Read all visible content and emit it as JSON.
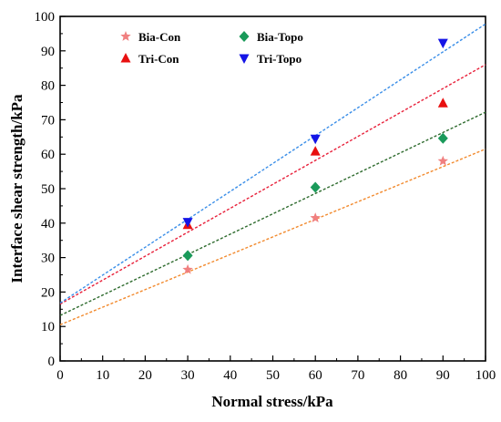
{
  "chart_data": {
    "type": "scatter",
    "xlabel": "Normal stress/kPa",
    "ylabel": "Interface shear strength/kPa",
    "xlim": [
      0,
      100
    ],
    "ylim": [
      0,
      100
    ],
    "x_ticks": [
      "0",
      "10",
      "20",
      "30",
      "40",
      "50",
      "60",
      "70",
      "80",
      "90",
      "100"
    ],
    "y_ticks": [
      "0",
      "10",
      "20",
      "30",
      "40",
      "50",
      "60",
      "70",
      "80",
      "90",
      "100"
    ],
    "grid": false,
    "legend_position": "top",
    "series": [
      {
        "name": "Bia-Con",
        "marker": "star",
        "color": "#f08080",
        "fit_color": "#f28a2e",
        "points": [
          [
            30,
            26.5
          ],
          [
            60,
            41.5
          ],
          [
            90,
            58.0
          ]
        ],
        "fit": {
          "intercept": 10.5,
          "slope": 0.51
        }
      },
      {
        "name": "Tri-Con",
        "marker": "triangle-up",
        "color": "#e81010",
        "fit_color": "#e8203a",
        "points": [
          [
            30,
            39.5
          ],
          [
            60,
            60.8
          ],
          [
            90,
            74.8
          ]
        ],
        "fit": {
          "intercept": 16.5,
          "slope": 0.695
        }
      },
      {
        "name": "Bia-Topo",
        "marker": "diamond",
        "color": "#1a9a5a",
        "fit_color": "#2e6b2e",
        "points": [
          [
            30,
            30.6
          ],
          [
            60,
            50.4
          ],
          [
            90,
            64.6
          ]
        ],
        "fit": {
          "intercept": 13.2,
          "slope": 0.59
        }
      },
      {
        "name": "Tri-Topo",
        "marker": "triangle-down",
        "color": "#1414e6",
        "fit_color": "#3a8ee8",
        "points": [
          [
            30,
            40.3
          ],
          [
            60,
            64.5
          ],
          [
            90,
            92.3
          ]
        ],
        "fit": {
          "intercept": 16.8,
          "slope": 0.81
        }
      }
    ]
  }
}
